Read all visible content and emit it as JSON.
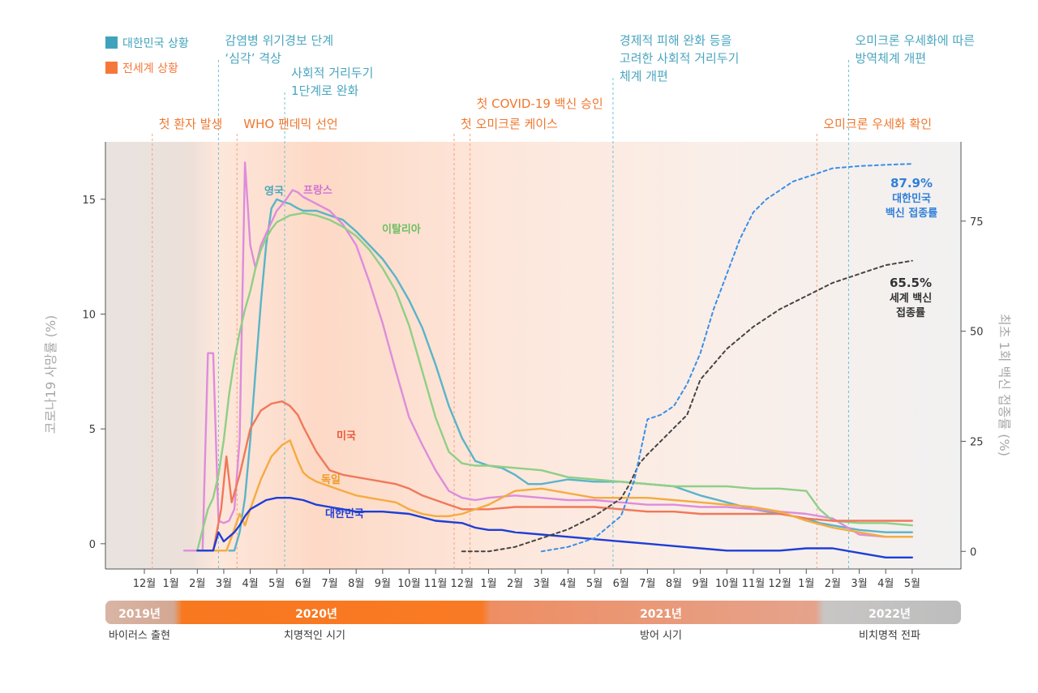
{
  "legend": [
    {
      "label": "대한민국 상황",
      "color": "#3fa3bc"
    },
    {
      "label": "전세계 상황",
      "color": "#f5783a"
    }
  ],
  "annotations": [
    {
      "lines": [
        "감염병 위기경보 단계",
        "‘심각’ 격상"
      ],
      "x": 2.8,
      "group": "korea"
    },
    {
      "lines": [
        "사회적 거리두기",
        "1단계로 완화"
      ],
      "x": 5.3,
      "group": "korea"
    },
    {
      "lines": [
        "경제적 피해 완화 등을",
        "고려한 사회적 거리두기",
        "체계 개편"
      ],
      "x": 17.7,
      "group": "korea"
    },
    {
      "lines": [
        "오미크론 우세화에 따른",
        "방역체계 개편"
      ],
      "x": 26.6,
      "group": "korea"
    },
    {
      "lines": [
        "첫 환자 발생"
      ],
      "x": 0.3,
      "group": "world"
    },
    {
      "lines": [
        "WHO 팬데믹 선언"
      ],
      "x": 3.5,
      "group": "world"
    },
    {
      "lines": [
        "첫 COVID-19 백신 승인"
      ],
      "x": 12.3,
      "group": "world"
    },
    {
      "lines": [
        "첫 오미크론 케이스"
      ],
      "x": 11.7,
      "group": "world"
    },
    {
      "lines": [
        "오미크론 우세화 확인"
      ],
      "x": 25.4,
      "group": "world"
    }
  ],
  "chart_data": {
    "type": "line",
    "x_ticks": [
      "12월",
      "1월",
      "2월",
      "3월",
      "4월",
      "5월",
      "6월",
      "7월",
      "8월",
      "9월",
      "10월",
      "11월",
      "12월",
      "1월",
      "2월",
      "3월",
      "4월",
      "5월",
      "6월",
      "7월",
      "8월",
      "9월",
      "10월",
      "11월",
      "12월",
      "1월",
      "2월",
      "3월",
      "4월",
      "5월"
    ],
    "ylabel_left": "코로나19 사망률 (%)",
    "ylabel_right": "최초 1회 백신 접종률 (%)",
    "ylim_left": [
      -1.1,
      17.5
    ],
    "ylim_right": [
      -4,
      93
    ],
    "yticks_left": [
      0,
      5,
      10,
      15
    ],
    "yticks_right": [
      0,
      25,
      50,
      75
    ],
    "periods": [
      {
        "label": "2019년",
        "phase": "바이러스 출현"
      },
      {
        "label": "2020년",
        "phase": "치명적인 시기"
      },
      {
        "label": "2021년",
        "phase": "방어 시기"
      },
      {
        "label": "2022년",
        "phase": "비치명적 전파"
      }
    ],
    "series": [
      {
        "name": "영국",
        "color": "#5ab4c8",
        "axis": "left",
        "x": [
          3.2,
          3.4,
          3.6,
          3.8,
          4.0,
          4.2,
          4.4,
          4.6,
          4.8,
          5.0,
          5.2,
          5.5,
          5.8,
          6.0,
          6.5,
          7.0,
          7.5,
          8.0,
          8.5,
          9.0,
          9.5,
          10.0,
          10.5,
          11.0,
          11.5,
          12.0,
          12.5,
          13.0,
          13.5,
          14.0,
          14.5,
          15.0,
          16.0,
          17.0,
          18.0,
          19.0,
          20.0,
          21.0,
          22.0,
          23.0,
          24.0,
          25.0,
          25.5,
          26.0,
          27.0,
          28.0,
          29.0
        ],
        "y": [
          -0.3,
          -0.3,
          0.5,
          2.0,
          4.5,
          7.5,
          10.5,
          13.0,
          14.6,
          15.0,
          14.9,
          14.8,
          14.6,
          14.5,
          14.5,
          14.3,
          14.1,
          13.6,
          13.0,
          12.4,
          11.6,
          10.6,
          9.4,
          7.8,
          6.0,
          4.6,
          3.6,
          3.4,
          3.3,
          3.0,
          2.6,
          2.6,
          2.8,
          2.7,
          2.7,
          2.6,
          2.5,
          2.1,
          1.8,
          1.5,
          1.3,
          1.1,
          0.9,
          0.8,
          0.6,
          0.5,
          0.5
        ]
      },
      {
        "name": "프랑스",
        "color": "#de8cdc",
        "axis": "left",
        "x": [
          1.5,
          1.8,
          2.0,
          2.2,
          2.4,
          2.6,
          2.8,
          3.0,
          3.2,
          3.4,
          3.6,
          3.8,
          4.0,
          4.2,
          4.4,
          4.6,
          4.8,
          5.0,
          5.3,
          5.6,
          5.8,
          6.0,
          6.5,
          7.0,
          7.5,
          8.0,
          8.5,
          9.0,
          9.5,
          10.0,
          10.5,
          11.0,
          11.5,
          12.0,
          12.5,
          13.0,
          14.0,
          15.0,
          16.0,
          17.0,
          18.0,
          19.0,
          20.0,
          21.0,
          22.0,
          23.0,
          24.0,
          25.0,
          26.0,
          27.0,
          28.0,
          29.0
        ],
        "y": [
          -0.3,
          -0.3,
          -0.3,
          -0.3,
          8.3,
          8.3,
          1.0,
          0.9,
          1.0,
          1.5,
          4.5,
          16.6,
          13.0,
          12.0,
          13.0,
          13.5,
          14.0,
          14.5,
          14.9,
          15.4,
          15.3,
          15.1,
          14.8,
          14.5,
          13.9,
          13.0,
          11.4,
          9.6,
          7.5,
          5.5,
          4.3,
          3.2,
          2.3,
          2.0,
          1.9,
          2.0,
          2.1,
          2.0,
          1.9,
          1.9,
          1.8,
          1.7,
          1.7,
          1.6,
          1.6,
          1.5,
          1.4,
          1.3,
          1.1,
          0.4,
          0.3,
          0.3
        ]
      },
      {
        "name": "이탈리아",
        "color": "#8fcf86",
        "axis": "left",
        "x": [
          2.0,
          2.2,
          2.4,
          2.6,
          2.8,
          3.0,
          3.2,
          3.4,
          3.6,
          3.8,
          4.0,
          4.2,
          4.4,
          4.6,
          4.8,
          5.0,
          5.5,
          6.0,
          6.5,
          7.0,
          7.5,
          8.0,
          8.5,
          9.0,
          9.5,
          10.0,
          10.5,
          11.0,
          11.5,
          12.0,
          12.5,
          13.0,
          14.0,
          15.0,
          16.0,
          17.0,
          18.0,
          19.0,
          20.0,
          21.0,
          22.0,
          23.0,
          24.0,
          25.0,
          25.5,
          26.0,
          27.0,
          28.0,
          29.0
        ],
        "y": [
          -0.3,
          0.6,
          1.5,
          2.0,
          3.0,
          4.5,
          6.5,
          8.0,
          9.2,
          10.2,
          11.0,
          12.0,
          12.8,
          13.3,
          13.7,
          14.0,
          14.3,
          14.4,
          14.3,
          14.1,
          13.8,
          13.4,
          12.8,
          12.0,
          11.0,
          9.5,
          7.5,
          5.5,
          4.0,
          3.5,
          3.4,
          3.4,
          3.3,
          3.2,
          2.9,
          2.8,
          2.7,
          2.6,
          2.5,
          2.5,
          2.5,
          2.4,
          2.4,
          2.3,
          1.5,
          1.0,
          0.9,
          0.9,
          0.8
        ]
      },
      {
        "name": "미국",
        "color": "#f0785a",
        "axis": "left",
        "x": [
          2.3,
          2.6,
          2.9,
          3.1,
          3.3,
          3.6,
          3.8,
          4.0,
          4.4,
          4.8,
          5.2,
          5.5,
          5.8,
          6.0,
          6.5,
          7.0,
          7.5,
          8.0,
          8.5,
          9.0,
          9.5,
          10.0,
          10.5,
          11.0,
          11.5,
          12.0,
          12.5,
          13.0,
          14.0,
          15.0,
          16.0,
          17.0,
          18.0,
          19.0,
          20.0,
          21.0,
          22.0,
          23.0,
          24.0,
          25.0,
          26.0,
          27.0,
          28.0,
          29.0
        ],
        "y": [
          -0.3,
          -0.3,
          1.5,
          3.8,
          1.8,
          3.0,
          4.0,
          5.0,
          5.8,
          6.1,
          6.2,
          6.0,
          5.6,
          5.1,
          4.0,
          3.2,
          3.0,
          2.9,
          2.8,
          2.7,
          2.6,
          2.4,
          2.1,
          1.9,
          1.7,
          1.5,
          1.5,
          1.5,
          1.6,
          1.6,
          1.6,
          1.6,
          1.5,
          1.4,
          1.4,
          1.3,
          1.3,
          1.3,
          1.3,
          1.1,
          1.0,
          1.0,
          1.0,
          1.0
        ]
      },
      {
        "name": "독일",
        "color": "#f5ab3f",
        "axis": "left",
        "x": [
          2.5,
          2.8,
          3.1,
          3.3,
          3.6,
          3.8,
          4.0,
          4.4,
          4.8,
          5.2,
          5.5,
          5.8,
          6.0,
          6.2,
          6.5,
          7.0,
          7.5,
          8.0,
          8.5,
          9.0,
          9.5,
          10.0,
          10.5,
          11.0,
          11.5,
          12.0,
          12.5,
          13.0,
          14.0,
          15.0,
          16.0,
          17.0,
          18.0,
          19.0,
          20.0,
          21.0,
          22.0,
          23.0,
          24.0,
          25.0,
          26.0,
          27.0,
          28.0,
          29.0
        ],
        "y": [
          -0.3,
          -0.3,
          -0.3,
          0.3,
          1.3,
          0.8,
          1.5,
          2.8,
          3.8,
          4.3,
          4.5,
          3.6,
          3.1,
          2.9,
          2.7,
          2.5,
          2.3,
          2.1,
          2.0,
          1.9,
          1.8,
          1.5,
          1.3,
          1.2,
          1.2,
          1.3,
          1.5,
          1.7,
          2.3,
          2.4,
          2.2,
          2.0,
          2.0,
          2.0,
          1.9,
          1.8,
          1.7,
          1.6,
          1.4,
          1.0,
          0.7,
          0.5,
          0.3,
          0.3
        ]
      },
      {
        "name": "대한민국",
        "color": "#1e3ed6",
        "axis": "left",
        "x": [
          2.0,
          2.3,
          2.6,
          2.8,
          3.0,
          3.2,
          3.4,
          3.6,
          3.8,
          4.0,
          4.3,
          4.6,
          5.0,
          5.5,
          6.0,
          6.5,
          7.0,
          7.5,
          8.0,
          9.0,
          10.0,
          11.0,
          12.0,
          12.5,
          13.0,
          13.5,
          14.0,
          15.0,
          16.0,
          17.0,
          18.0,
          19.0,
          20.0,
          21.0,
          22.0,
          23.0,
          24.0,
          25.0,
          26.0,
          27.0,
          28.0,
          29.0
        ],
        "y": [
          -0.3,
          -0.3,
          -0.3,
          0.5,
          0.1,
          0.3,
          0.5,
          0.8,
          1.2,
          1.5,
          1.7,
          1.9,
          2.0,
          2.0,
          1.9,
          1.7,
          1.6,
          1.5,
          1.4,
          1.4,
          1.3,
          1.0,
          0.9,
          0.7,
          0.6,
          0.6,
          0.5,
          0.4,
          0.3,
          0.2,
          0.1,
          0.0,
          -0.1,
          -0.2,
          -0.3,
          -0.3,
          -0.3,
          -0.2,
          -0.2,
          -0.4,
          -0.6,
          -0.6
        ]
      },
      {
        "name": "세계 백신 접종률",
        "color": "#444444",
        "axis": "right",
        "dash": "4,4",
        "x": [
          12.0,
          13.0,
          14.0,
          15.0,
          16.0,
          17.0,
          18.0,
          18.3,
          18.7,
          19.0,
          19.5,
          20.0,
          20.5,
          21.0,
          22.0,
          23.0,
          23.5,
          24.0,
          25.0,
          26.0,
          27.0,
          28.0,
          29.0
        ],
        "y": [
          0,
          0,
          1,
          3,
          5,
          8,
          12,
          15,
          20,
          22,
          25,
          28,
          31,
          39,
          46,
          51,
          53,
          55,
          58,
          61,
          63,
          65,
          66
        ]
      },
      {
        "name": "대한민국 백신 접종률",
        "color": "#3a8fe8",
        "axis": "right",
        "dash": "4,4",
        "x": [
          15.0,
          16.0,
          17.0,
          18.0,
          18.5,
          19.0,
          19.5,
          20.0,
          20.5,
          21.0,
          21.5,
          22.0,
          22.5,
          23.0,
          23.5,
          24.0,
          24.5,
          25.0,
          25.5,
          26.0,
          27.0,
          28.0,
          29.0
        ],
        "y": [
          0,
          1,
          3,
          8,
          16,
          30,
          31,
          33,
          38,
          45,
          55,
          63,
          71,
          77,
          80,
          82,
          84,
          85,
          86,
          87,
          87.5,
          87.8,
          88
        ]
      }
    ],
    "series_labels": [
      {
        "text": "영국",
        "color": "#4aa6bf"
      },
      {
        "text": "프랑스",
        "color": "#d373d1"
      },
      {
        "text": "이탈리아",
        "color": "#6ebf63"
      },
      {
        "text": "미국",
        "color": "#ea5a3c"
      },
      {
        "text": "독일",
        "color": "#ee9a22"
      },
      {
        "text": "대한민국",
        "color": "#1e3ed6"
      }
    ],
    "end_labels": {
      "korea_vaccine": {
        "lines": [
          "87.9%",
          "대한민국",
          "백신 접종률"
        ],
        "color": "#2f7fd9"
      },
      "world_vaccine": {
        "lines": [
          "65.5%",
          "세계 백신",
          "접종률"
        ],
        "color": "#333333"
      }
    }
  }
}
